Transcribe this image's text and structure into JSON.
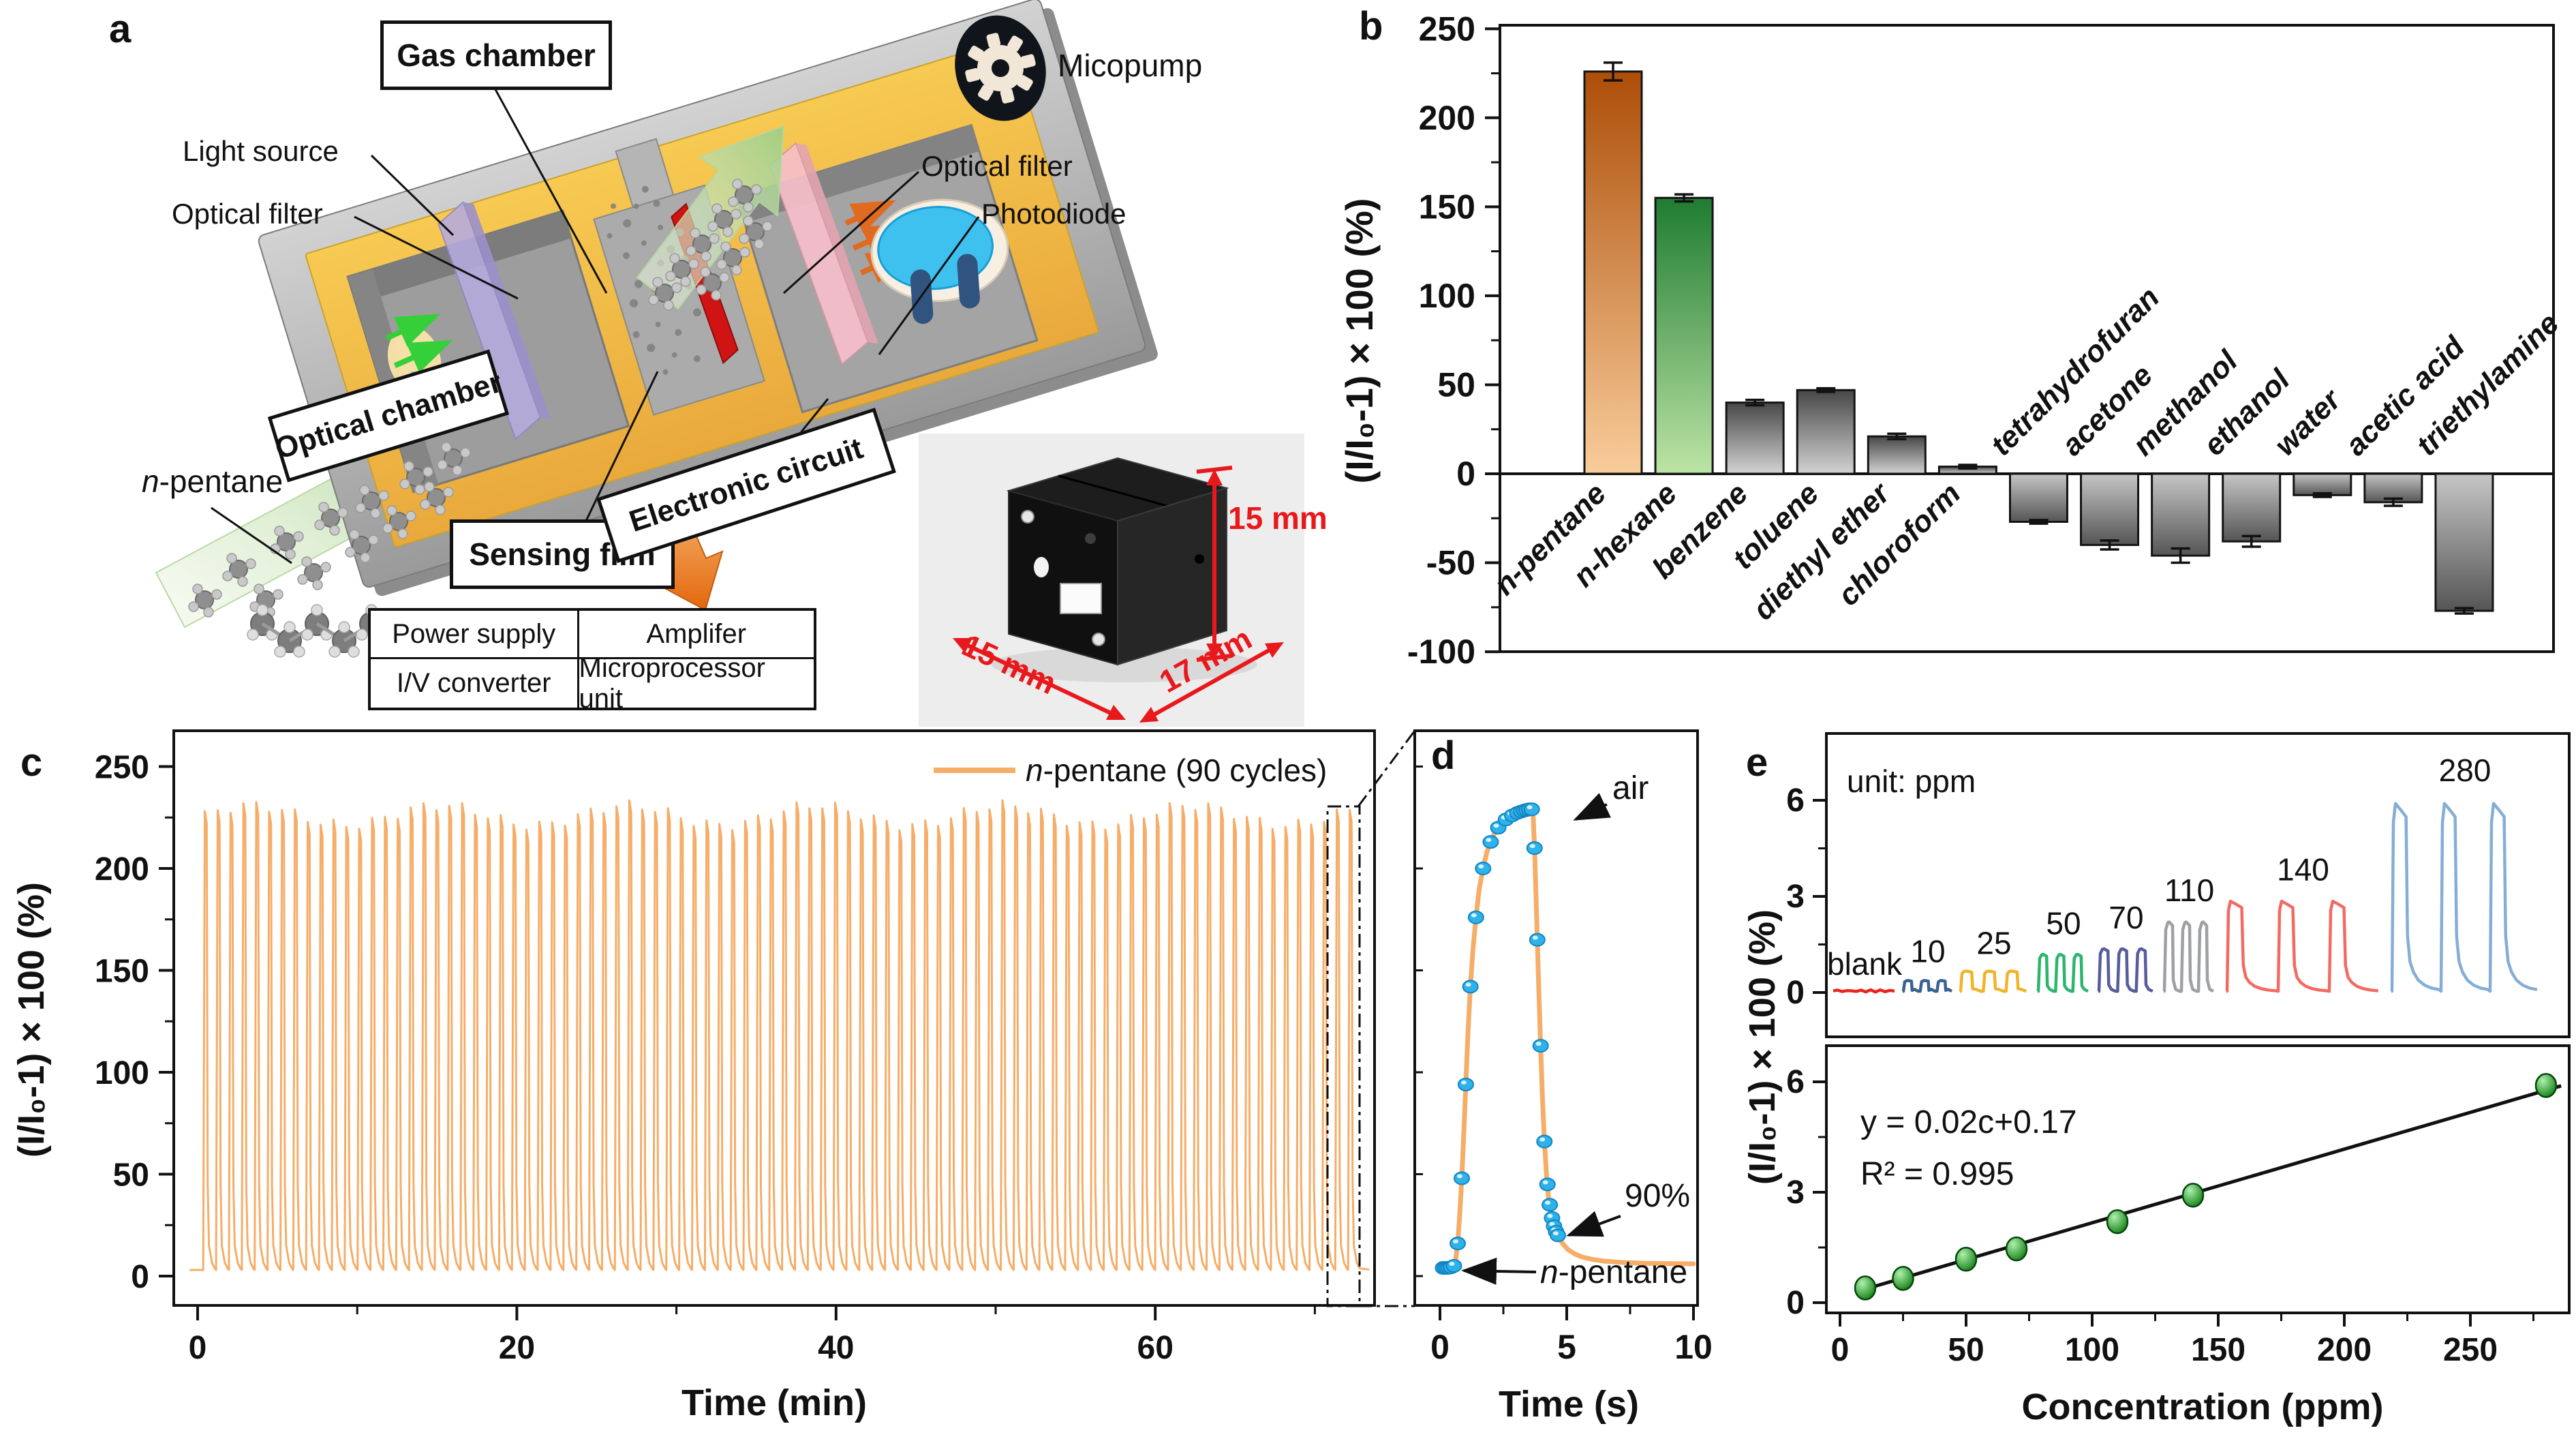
{
  "panels": {
    "a": "a",
    "b": "b",
    "c": "c",
    "d": "d",
    "e": "e"
  },
  "diagram": {
    "labels": {
      "gas_chamber": "Gas chamber",
      "micropump": "Micopump",
      "light_source": "Light source",
      "optical_filter_left": "Optical filter",
      "optical_filter_right": "Optical filter",
      "photodiode": "Photodiode",
      "optical_chamber": "Optical chamber",
      "sensing_film": "Sensing film",
      "electronic_circuit": "Electronic circuit"
    },
    "n_pentane": {
      "italic": "n",
      "rest": "-pentane"
    },
    "circuit_table": {
      "r0c0": "Power supply",
      "r0c1": "Amplifer",
      "r1c0": "I/V converter",
      "r1c1": "Microprocessor unit"
    },
    "photo": {
      "height_label": "15 mm",
      "width_label": "15 mm",
      "depth_label": "17 mm"
    }
  },
  "chart_data": [
    {
      "id": "b",
      "type": "bar",
      "ylabel": "(I/I₀-1) × 100 (%)",
      "ylim": [
        -100,
        250
      ],
      "yticks": [
        -100,
        -50,
        0,
        50,
        100,
        150,
        200,
        250
      ],
      "categories": [
        "n-pentane",
        "n-hexane",
        "benzene",
        "toluene",
        "diethyl ether",
        "chloroform",
        "tetrahydrofuran",
        "acetone",
        "methanol",
        "ethanol",
        "water",
        "acetic acid",
        "triethylamine"
      ],
      "values": [
        226,
        155,
        40,
        47,
        21,
        4,
        -27,
        -40,
        -46,
        -38,
        -12,
        -16,
        -77
      ],
      "errors": [
        5,
        2,
        1.5,
        1,
        1.5,
        1,
        1,
        2.5,
        4,
        3,
        1,
        2,
        1.5
      ],
      "bar_colors": [
        "orange",
        "green",
        "gray",
        "gray",
        "gray",
        "gray",
        "gray",
        "gray",
        "gray",
        "gray",
        "gray",
        "gray",
        "gray"
      ],
      "grid": false,
      "legend_position": "none"
    },
    {
      "id": "c",
      "type": "line-cycles",
      "xlabel": "Time (min)",
      "ylabel": "(I/I₀-1) × 100 (%)",
      "xlim": [
        -1.5,
        73.7
      ],
      "ylim": [
        -14,
        268
      ],
      "xticks": [
        0,
        20,
        40,
        60
      ],
      "yticks": [
        0,
        50,
        100,
        150,
        200,
        250
      ],
      "legend": {
        "italic": "n",
        "rest": "-pentane (90 cycles)"
      },
      "cycles": 90,
      "start_min": 0.35,
      "period_min": 0.806,
      "baseline": 3,
      "peak_mean": 226,
      "peak_variation": 5,
      "color": "#f5ad68"
    },
    {
      "id": "d",
      "type": "line-scatter",
      "xlabel": "Time (s)",
      "xlim": [
        -1,
        10.2
      ],
      "xticks": [
        0,
        5,
        10
      ],
      "annotations": {
        "air": "air",
        "ninety": "90%",
        "pentane_italic": "n",
        "pentane_rest": "-pentane"
      },
      "line_color": "#f5ad68",
      "dot_color": "#2fb1ea",
      "curve": [
        [
          0.1,
          4
        ],
        [
          0.45,
          4
        ],
        [
          0.55,
          5
        ],
        [
          0.62,
          8
        ],
        [
          0.7,
          16
        ],
        [
          0.78,
          30
        ],
        [
          0.86,
          48
        ],
        [
          0.94,
          70
        ],
        [
          1.02,
          94
        ],
        [
          1.1,
          118
        ],
        [
          1.2,
          142
        ],
        [
          1.3,
          160
        ],
        [
          1.42,
          176
        ],
        [
          1.55,
          190
        ],
        [
          1.7,
          200
        ],
        [
          1.85,
          208
        ],
        [
          2.0,
          213
        ],
        [
          2.15,
          217
        ],
        [
          2.3,
          220
        ],
        [
          2.5,
          223
        ],
        [
          2.7,
          225
        ],
        [
          2.9,
          226.5
        ],
        [
          3.1,
          227.5
        ],
        [
          3.3,
          228.4
        ],
        [
          3.5,
          229
        ],
        [
          3.62,
          229
        ],
        [
          3.68,
          225
        ],
        [
          3.73,
          210
        ],
        [
          3.78,
          190
        ],
        [
          3.84,
          165
        ],
        [
          3.9,
          140
        ],
        [
          3.97,
          113
        ],
        [
          4.04,
          88
        ],
        [
          4.12,
          66
        ],
        [
          4.2,
          50
        ],
        [
          4.28,
          39
        ],
        [
          4.36,
          31
        ],
        [
          4.45,
          26
        ],
        [
          4.55,
          22.5
        ],
        [
          4.68,
          19
        ],
        [
          4.85,
          15.8
        ],
        [
          5.05,
          13
        ],
        [
          5.3,
          11
        ],
        [
          5.6,
          9.4
        ],
        [
          6.0,
          8.2
        ],
        [
          6.5,
          7.3
        ],
        [
          7.2,
          6.7
        ],
        [
          8.0,
          6.3
        ],
        [
          9.0,
          6.1
        ],
        [
          10,
          6
        ]
      ],
      "dots": [
        [
          0.12,
          4
        ],
        [
          0.2,
          4
        ],
        [
          0.28,
          4
        ],
        [
          0.36,
          4.1
        ],
        [
          0.44,
          4.3
        ],
        [
          0.55,
          5
        ],
        [
          0.7,
          16
        ],
        [
          0.86,
          48
        ],
        [
          1.02,
          94
        ],
        [
          1.2,
          142
        ],
        [
          1.42,
          176
        ],
        [
          1.7,
          200
        ],
        [
          2.0,
          213
        ],
        [
          2.3,
          220
        ],
        [
          2.6,
          224
        ],
        [
          2.85,
          226
        ],
        [
          3.05,
          227.2
        ],
        [
          3.2,
          227.9
        ],
        [
          3.32,
          228.4
        ],
        [
          3.42,
          228.7
        ],
        [
          3.52,
          229
        ],
        [
          3.62,
          229
        ],
        [
          3.73,
          210
        ],
        [
          3.84,
          165
        ],
        [
          3.97,
          113
        ],
        [
          4.12,
          66
        ],
        [
          4.24,
          45
        ],
        [
          4.33,
          35
        ],
        [
          4.42,
          28.5
        ],
        [
          4.5,
          24.5
        ],
        [
          4.58,
          21.8
        ],
        [
          4.65,
          20
        ]
      ]
    },
    {
      "id": "e_top",
      "type": "pulse-train",
      "note": "unit: ppm",
      "yticks": [
        0,
        3,
        6
      ],
      "ylim": [
        -0.6,
        7.3
      ],
      "groups": [
        {
          "label": "blank",
          "color": "#e8251f",
          "height": 0.06,
          "pulses": 1,
          "x0": 130,
          "x1": 222,
          "label_y": 0.55
        },
        {
          "label": "10",
          "color": "#3a6291",
          "height": 0.37,
          "pulses": 3,
          "x0": 232,
          "x1": 306,
          "label_y": 0.95
        },
        {
          "label": "25",
          "color": "#f0b428",
          "height": 0.66,
          "pulses": 3,
          "x0": 316,
          "x1": 416,
          "label_y": 1.2
        },
        {
          "label": "50",
          "color": "#2db56e",
          "height": 1.18,
          "pulses": 3,
          "x0": 430,
          "x1": 506,
          "label_y": 1.82
        },
        {
          "label": "70",
          "color": "#585c9c",
          "height": 1.35,
          "pulses": 3,
          "x0": 519,
          "x1": 601,
          "label_y": 2.0
        },
        {
          "label": "110",
          "color": "#9fa0a3",
          "height": 2.18,
          "pulses": 3,
          "x0": 615,
          "x1": 690,
          "label_y": 2.85
        },
        {
          "label": "140",
          "color": "#f26b63",
          "height": 2.85,
          "pulses": 3,
          "x0": 707,
          "x1": 932,
          "label_y": 3.5,
          "tail": true
        },
        {
          "label": "280",
          "color": "#85aed6",
          "height": 5.9,
          "pulses": 3,
          "x0": 949,
          "x1": 1165,
          "label_y": 6.6,
          "tail": true
        }
      ]
    },
    {
      "id": "e_fit",
      "type": "scatter-fit",
      "xlabel": "Concentration (ppm)",
      "ylabel": "(I/I₀-1) × 100 (%)",
      "xlim": [
        0,
        290
      ],
      "ylim": [
        -0.3,
        6.6
      ],
      "xticks": [
        0,
        50,
        100,
        150,
        200,
        250
      ],
      "yticks": [
        0,
        3,
        6
      ],
      "x": [
        10,
        25,
        50,
        70,
        110,
        140,
        280
      ],
      "y": [
        0.4,
        0.66,
        1.18,
        1.46,
        2.2,
        2.92,
        5.9
      ],
      "yerr": [
        0.12,
        0.12,
        0.13,
        0.15,
        0.12,
        0.16,
        0.15
      ],
      "fit": {
        "slope": 0.02,
        "intercept": 0.17,
        "label": "y = 0.02c+0.17",
        "r2_label": "R² = 0.995"
      },
      "point_color": "#119117",
      "line_color": "#111111"
    }
  ]
}
